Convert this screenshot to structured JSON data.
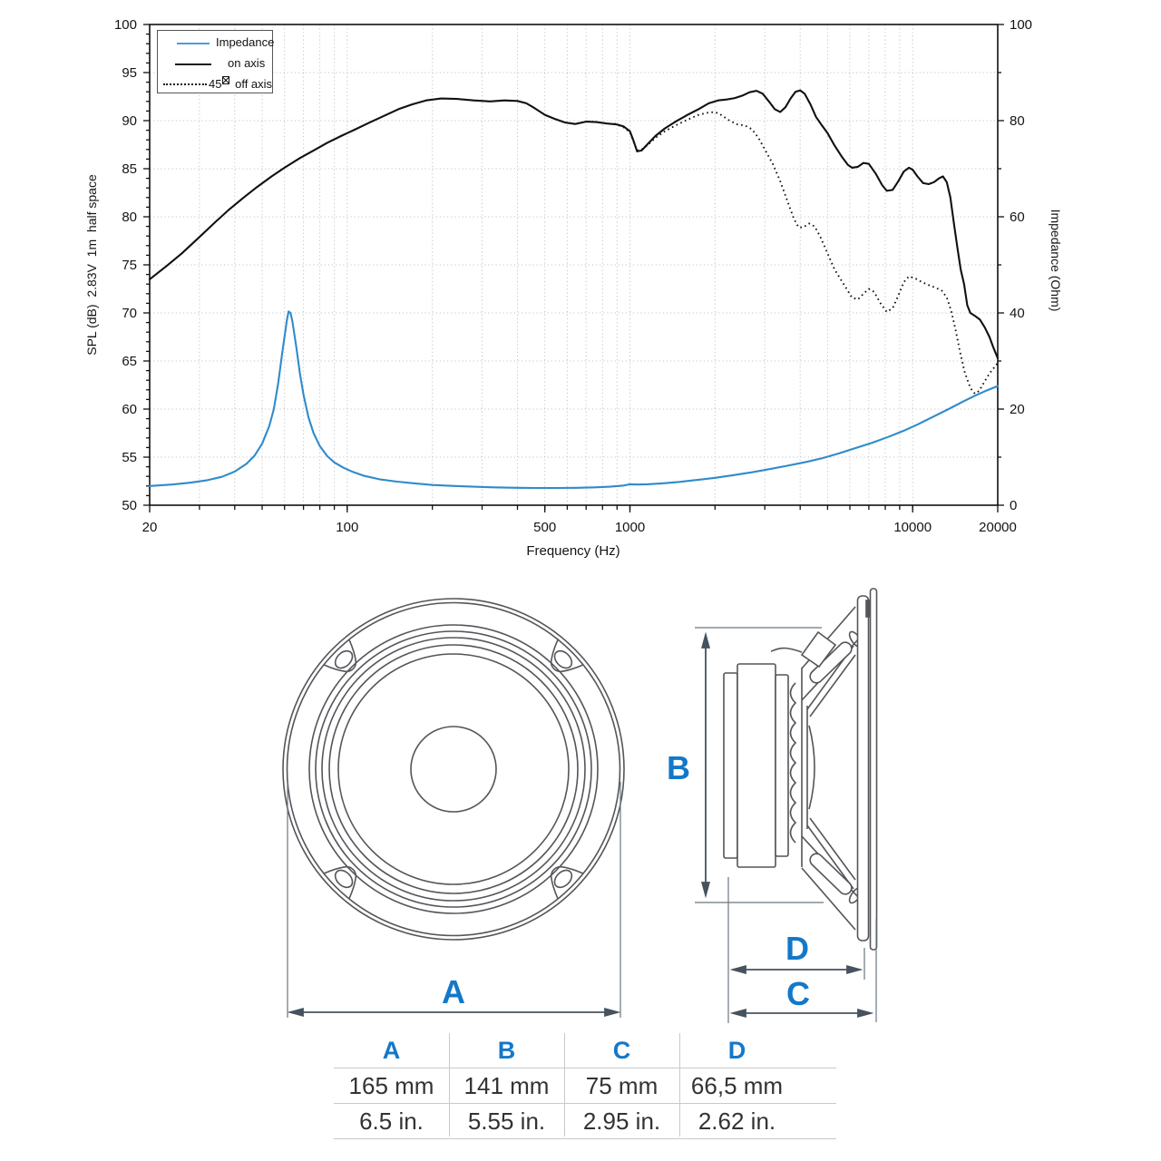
{
  "chart_data": {
    "type": "line",
    "title": "",
    "xlabel": "Frequency (Hz)",
    "ylabel_left": "SPL (dB)  2.83V  1m  half space",
    "ylabel_right": "Impedance (Ohm)",
    "x_scale": "log",
    "xlim": [
      20,
      20000
    ],
    "ylim_left": [
      50,
      100
    ],
    "y_left_tick_step": 5,
    "ylim_right": [
      0,
      100
    ],
    "y_right_tick_step": 20,
    "x_labeled_ticks": [
      20,
      100,
      500,
      1000,
      10000,
      20000
    ],
    "grid": true,
    "legend_position": "top-left",
    "legend": {
      "items": [
        {
          "label": "Impedance",
          "style": "solid-blue"
        },
        {
          "label": "on axis",
          "style": "solid-black"
        },
        {
          "prefix": "45",
          "glyph": "missing-degree-box",
          "label": "off axis",
          "style": "dotted-black"
        }
      ]
    },
    "colors": {
      "impedance_curve": "#2f8bca",
      "legend_sample_blue": "#4d9fd6",
      "on_axis_curve": "#111111",
      "off_axis_curve": "#111111",
      "grid": "#c7c7c7",
      "axis": "#111111",
      "accent_blue": "#1478c8",
      "dimension_lines": "#46525e",
      "drawing_outline": "#55555a"
    },
    "series": [
      {
        "name": "Impedance",
        "axis": "right",
        "unit": "Ohm",
        "style": "solid",
        "color": "#2f8bca",
        "points": [
          [
            20,
            4.0
          ],
          [
            24,
            4.3
          ],
          [
            28,
            4.7
          ],
          [
            32,
            5.2
          ],
          [
            36,
            5.9
          ],
          [
            40,
            7.0
          ],
          [
            44,
            8.6
          ],
          [
            47,
            10.3
          ],
          [
            50,
            12.8
          ],
          [
            53,
            16.5
          ],
          [
            55,
            20.0
          ],
          [
            57,
            25.5
          ],
          [
            59,
            32.0
          ],
          [
            61,
            38.0
          ],
          [
            62,
            40.3
          ],
          [
            63,
            40.0
          ],
          [
            64,
            38.2
          ],
          [
            66,
            33.0
          ],
          [
            68,
            27.5
          ],
          [
            70,
            23.0
          ],
          [
            73,
            18.2
          ],
          [
            76,
            15.0
          ],
          [
            80,
            12.3
          ],
          [
            85,
            10.2
          ],
          [
            90,
            8.9
          ],
          [
            97,
            7.8
          ],
          [
            105,
            6.9
          ],
          [
            115,
            6.1
          ],
          [
            130,
            5.4
          ],
          [
            150,
            4.9
          ],
          [
            175,
            4.5
          ],
          [
            200,
            4.2
          ],
          [
            240,
            4.0
          ],
          [
            280,
            3.85
          ],
          [
            330,
            3.72
          ],
          [
            400,
            3.62
          ],
          [
            470,
            3.58
          ],
          [
            550,
            3.58
          ],
          [
            650,
            3.62
          ],
          [
            750,
            3.72
          ],
          [
            850,
            3.85
          ],
          [
            950,
            4.1
          ],
          [
            1000,
            4.35
          ],
          [
            1060,
            4.3
          ],
          [
            1150,
            4.35
          ],
          [
            1300,
            4.55
          ],
          [
            1500,
            4.85
          ],
          [
            1750,
            5.3
          ],
          [
            2000,
            5.7
          ],
          [
            2300,
            6.2
          ],
          [
            2700,
            6.85
          ],
          [
            3100,
            7.5
          ],
          [
            3600,
            8.2
          ],
          [
            4200,
            9.0
          ],
          [
            4800,
            9.8
          ],
          [
            5500,
            10.8
          ],
          [
            6300,
            11.9
          ],
          [
            7200,
            13.0
          ],
          [
            8200,
            14.2
          ],
          [
            9300,
            15.5
          ],
          [
            10500,
            16.9
          ],
          [
            12000,
            18.6
          ],
          [
            13500,
            20.1
          ],
          [
            15000,
            21.5
          ],
          [
            16500,
            22.7
          ],
          [
            18000,
            23.7
          ],
          [
            20000,
            24.8
          ]
        ]
      },
      {
        "name": "on axis",
        "axis": "left",
        "unit": "dB",
        "style": "solid",
        "color": "#111111",
        "points": [
          [
            20,
            73.5
          ],
          [
            23,
            74.9
          ],
          [
            26,
            76.2
          ],
          [
            30,
            77.9
          ],
          [
            34,
            79.4
          ],
          [
            38,
            80.7
          ],
          [
            43,
            82.0
          ],
          [
            48,
            83.1
          ],
          [
            54,
            84.2
          ],
          [
            60,
            85.1
          ],
          [
            68,
            86.1
          ],
          [
            76,
            86.9
          ],
          [
            85,
            87.7
          ],
          [
            95,
            88.4
          ],
          [
            107,
            89.1
          ],
          [
            120,
            89.8
          ],
          [
            135,
            90.5
          ],
          [
            152,
            91.2
          ],
          [
            170,
            91.7
          ],
          [
            190,
            92.1
          ],
          [
            215,
            92.3
          ],
          [
            245,
            92.25
          ],
          [
            280,
            92.1
          ],
          [
            320,
            92.0
          ],
          [
            360,
            92.1
          ],
          [
            400,
            92.05
          ],
          [
            430,
            91.8
          ],
          [
            460,
            91.3
          ],
          [
            500,
            90.6
          ],
          [
            540,
            90.2
          ],
          [
            590,
            89.8
          ],
          [
            640,
            89.65
          ],
          [
            700,
            89.9
          ],
          [
            760,
            89.85
          ],
          [
            830,
            89.7
          ],
          [
            900,
            89.6
          ],
          [
            950,
            89.4
          ],
          [
            1000,
            88.9
          ],
          [
            1030,
            87.9
          ],
          [
            1060,
            86.8
          ],
          [
            1100,
            86.9
          ],
          [
            1150,
            87.5
          ],
          [
            1230,
            88.4
          ],
          [
            1330,
            89.2
          ],
          [
            1450,
            89.9
          ],
          [
            1600,
            90.6
          ],
          [
            1750,
            91.2
          ],
          [
            1900,
            91.8
          ],
          [
            2050,
            92.1
          ],
          [
            2200,
            92.2
          ],
          [
            2350,
            92.35
          ],
          [
            2500,
            92.6
          ],
          [
            2650,
            92.95
          ],
          [
            2800,
            93.1
          ],
          [
            2950,
            92.8
          ],
          [
            3100,
            92.0
          ],
          [
            3250,
            91.2
          ],
          [
            3400,
            90.9
          ],
          [
            3550,
            91.4
          ],
          [
            3700,
            92.3
          ],
          [
            3850,
            93.0
          ],
          [
            4000,
            93.15
          ],
          [
            4150,
            92.8
          ],
          [
            4350,
            91.7
          ],
          [
            4550,
            90.4
          ],
          [
            4750,
            89.6
          ],
          [
            5000,
            88.7
          ],
          [
            5300,
            87.4
          ],
          [
            5600,
            86.3
          ],
          [
            5900,
            85.4
          ],
          [
            6100,
            85.1
          ],
          [
            6400,
            85.2
          ],
          [
            6700,
            85.6
          ],
          [
            7000,
            85.5
          ],
          [
            7400,
            84.5
          ],
          [
            7800,
            83.3
          ],
          [
            8100,
            82.7
          ],
          [
            8500,
            82.8
          ],
          [
            8900,
            83.7
          ],
          [
            9300,
            84.7
          ],
          [
            9700,
            85.1
          ],
          [
            10000,
            84.9
          ],
          [
            10400,
            84.2
          ],
          [
            10900,
            83.5
          ],
          [
            11400,
            83.4
          ],
          [
            11900,
            83.6
          ],
          [
            12400,
            84.0
          ],
          [
            12800,
            84.2
          ],
          [
            13200,
            83.6
          ],
          [
            13600,
            82.0
          ],
          [
            14000,
            79.3
          ],
          [
            14400,
            76.8
          ],
          [
            14800,
            74.5
          ],
          [
            15200,
            73.0
          ],
          [
            15600,
            70.8
          ],
          [
            16000,
            70.0
          ],
          [
            16600,
            69.7
          ],
          [
            17300,
            69.3
          ],
          [
            18000,
            68.5
          ],
          [
            18700,
            67.5
          ],
          [
            19300,
            66.4
          ],
          [
            20000,
            65.3
          ]
        ]
      },
      {
        "name": "45° off axis",
        "axis": "left",
        "unit": "dB",
        "style": "dotted",
        "color": "#111111",
        "points": [
          [
            880,
            89.7
          ],
          [
            950,
            89.3
          ],
          [
            1000,
            88.8
          ],
          [
            1030,
            87.8
          ],
          [
            1060,
            86.9
          ],
          [
            1100,
            87.0
          ],
          [
            1150,
            87.4
          ],
          [
            1230,
            88.2
          ],
          [
            1330,
            88.9
          ],
          [
            1450,
            89.5
          ],
          [
            1600,
            90.1
          ],
          [
            1750,
            90.6
          ],
          [
            1900,
            90.85
          ],
          [
            2000,
            90.9
          ],
          [
            2100,
            90.6
          ],
          [
            2250,
            90.0
          ],
          [
            2400,
            89.6
          ],
          [
            2550,
            89.5
          ],
          [
            2700,
            89.1
          ],
          [
            2850,
            88.2
          ],
          [
            3000,
            87.0
          ],
          [
            3200,
            85.5
          ],
          [
            3400,
            83.7
          ],
          [
            3600,
            81.7
          ],
          [
            3800,
            79.8
          ],
          [
            3950,
            78.9
          ],
          [
            4100,
            78.9
          ],
          [
            4300,
            79.3
          ],
          [
            4500,
            79.0
          ],
          [
            4700,
            78.0
          ],
          [
            5000,
            76.2
          ],
          [
            5300,
            74.5
          ],
          [
            5700,
            73.0
          ],
          [
            6100,
            71.6
          ],
          [
            6400,
            71.4
          ],
          [
            6700,
            72.0
          ],
          [
            7000,
            72.5
          ],
          [
            7300,
            72.2
          ],
          [
            7700,
            71.0
          ],
          [
            8100,
            70.1
          ],
          [
            8500,
            70.5
          ],
          [
            8900,
            71.8
          ],
          [
            9300,
            73.2
          ],
          [
            9700,
            73.8
          ],
          [
            10200,
            73.6
          ],
          [
            10800,
            73.2
          ],
          [
            11400,
            72.9
          ],
          [
            12100,
            72.6
          ],
          [
            12700,
            72.3
          ],
          [
            13200,
            71.6
          ],
          [
            13700,
            70.2
          ],
          [
            14200,
            68.2
          ],
          [
            14700,
            66.0
          ],
          [
            15300,
            63.8
          ],
          [
            16000,
            62.2
          ],
          [
            16600,
            61.6
          ],
          [
            17200,
            61.9
          ],
          [
            17900,
            62.8
          ],
          [
            18700,
            63.7
          ],
          [
            19400,
            64.3
          ],
          [
            20000,
            64.8
          ]
        ]
      }
    ]
  },
  "diagram": {
    "labels": {
      "a": "A",
      "b": "B",
      "c": "C",
      "d": "D"
    }
  },
  "dim_table": {
    "headers": [
      "A",
      "B",
      "C",
      "D"
    ],
    "rows": [
      [
        "165 mm",
        "141 mm",
        "75 mm",
        "66,5 mm"
      ],
      [
        "6.5 in.",
        "5.55 in.",
        "2.95 in.",
        "2.62 in."
      ]
    ]
  }
}
